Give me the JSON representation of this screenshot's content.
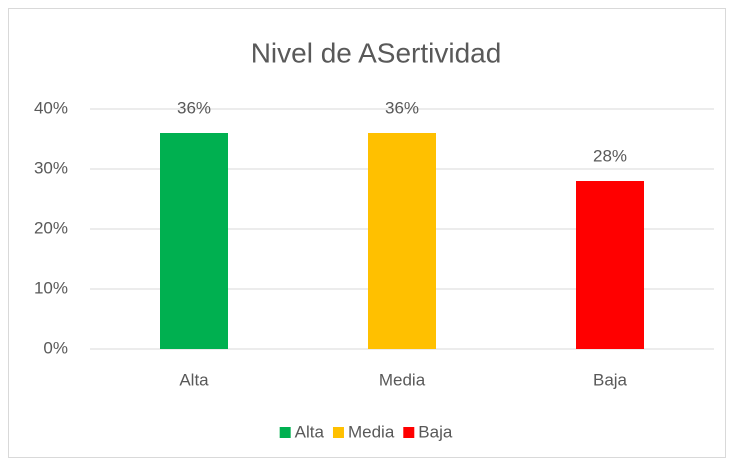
{
  "chart_data": {
    "type": "bar",
    "title": "Nivel de ASertividad",
    "categories": [
      "Alta",
      "Media",
      "Baja"
    ],
    "values": [
      36,
      36,
      28
    ],
    "value_labels": [
      "36%",
      "36%",
      "28%"
    ],
    "colors": [
      "#00b050",
      "#ffc000",
      "#ff0000"
    ],
    "ylim": [
      0,
      40
    ],
    "yticks": [
      {
        "value": 0,
        "label": "0%"
      },
      {
        "value": 10,
        "label": "10%"
      },
      {
        "value": 20,
        "label": "20%"
      },
      {
        "value": 30,
        "label": "30%"
      },
      {
        "value": 40,
        "label": "40%"
      }
    ],
    "grid": true,
    "legend": "bottom"
  }
}
